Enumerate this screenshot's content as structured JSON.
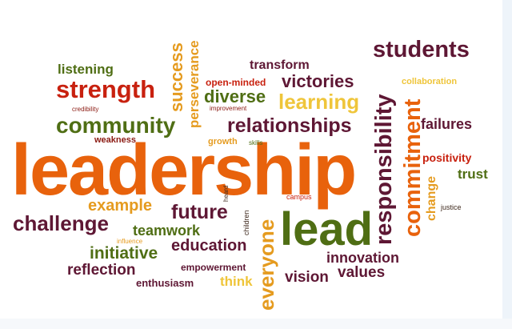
{
  "colors": {
    "orange": "#e8620c",
    "red": "#c8210f",
    "dark_red": "#8b1a12",
    "maroon": "#5e1734",
    "olive": "#4f6e14",
    "brown": "#6b3e12",
    "amber": "#e59b1f",
    "yellow": "#efc53a",
    "dark": "#3f2a1e",
    "gray": "#7a7060"
  },
  "words": {
    "leadership": "leadership",
    "strength": "strength",
    "community": "community",
    "relationships": "relationships",
    "responsibility": "responsibility",
    "commitment": "commitment",
    "lead": "lead",
    "challenge": "challenge",
    "students": "students",
    "victories": "victories",
    "learning": "learning",
    "diverse": "diverse",
    "transform": "transform",
    "listening": "listening",
    "success": "success",
    "perseverance": "perseverance",
    "open_minded": "open-minded",
    "improvement": "improvement",
    "credibility": "credibility",
    "weakness": "weakness",
    "growth": "growth",
    "skills": "skills",
    "collaboration": "collaboration",
    "failures": "failures",
    "positivity": "positivity",
    "trust": "trust",
    "change": "change",
    "justice": "justice",
    "campus": "campus",
    "example": "example",
    "future": "future",
    "teamwork": "teamwork",
    "children": "children",
    "heard": "heard",
    "everyone": "everyone",
    "influence": "influence",
    "education": "education",
    "initiative": "initiative",
    "innovation": "innovation",
    "reflection": "reflection",
    "empowerment": "empowerment",
    "vision": "vision",
    "values": "values",
    "enthusiasm": "enthusiasm",
    "think": "think"
  }
}
